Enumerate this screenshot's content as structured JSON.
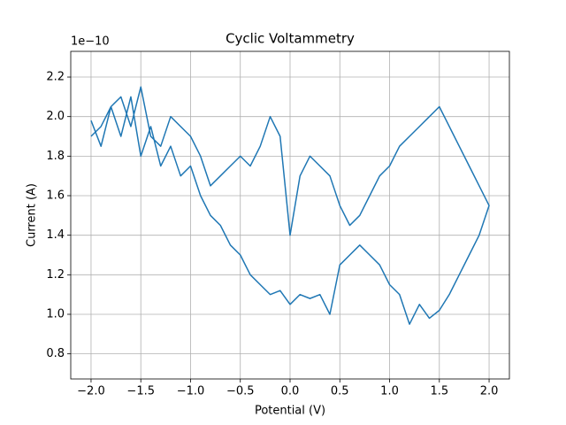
{
  "chart_data": {
    "type": "line",
    "title": "Cyclic Voltammetry",
    "x_label": "Potential (V)",
    "y_label": "Current (A)",
    "y_offset_text": "1e−10",
    "series": [
      {
        "color": "#1f77b4",
        "x": [
          -2.0,
          -1.9,
          -1.8,
          -1.7,
          -1.6,
          -1.5,
          -1.4,
          -1.3,
          -1.2,
          -1.1,
          -1.0,
          -0.9,
          -0.8,
          -0.7,
          -0.6,
          -0.5,
          -0.4,
          -0.3,
          -0.2,
          -0.1,
          0.0,
          0.1,
          0.2,
          0.3,
          0.4,
          0.5,
          0.6,
          0.7,
          0.8,
          0.9,
          1.0,
          1.1,
          1.2,
          1.3,
          1.4,
          1.5,
          1.6,
          1.7,
          1.8,
          1.9,
          2.0,
          1.9,
          1.8,
          1.7,
          1.6,
          1.5,
          1.4,
          1.3,
          1.2,
          1.1,
          1.0,
          0.9,
          0.8,
          0.7,
          0.6,
          0.5,
          0.4,
          0.3,
          0.2,
          0.1,
          0.0,
          -0.1,
          -0.2,
          -0.3,
          -0.4,
          -0.5,
          -0.6,
          -0.7,
          -0.8,
          -0.9,
          -1.0,
          -1.1,
          -1.2,
          -1.3,
          -1.4,
          -1.5,
          -1.6,
          -1.7,
          -1.8,
          -1.9,
          -2.0
        ],
        "values": [
          1.98,
          1.85,
          2.05,
          1.9,
          2.1,
          1.8,
          1.95,
          1.75,
          1.85,
          1.7,
          1.75,
          1.6,
          1.5,
          1.45,
          1.35,
          1.3,
          1.2,
          1.15,
          1.1,
          1.12,
          1.05,
          1.1,
          1.08,
          1.1,
          1.0,
          1.25,
          1.3,
          1.35,
          1.3,
          1.25,
          1.15,
          1.1,
          0.95,
          1.05,
          0.98,
          1.02,
          1.1,
          1.2,
          1.3,
          1.4,
          1.55,
          1.65,
          1.75,
          1.85,
          1.95,
          2.05,
          2.0,
          1.95,
          1.9,
          1.85,
          1.75,
          1.7,
          1.6,
          1.5,
          1.45,
          1.55,
          1.7,
          1.75,
          1.8,
          1.7,
          1.4,
          1.9,
          2.0,
          1.85,
          1.75,
          1.8,
          1.75,
          1.7,
          1.65,
          1.8,
          1.9,
          1.95,
          2.0,
          1.85,
          1.9,
          2.15,
          1.95,
          2.1,
          2.05,
          1.95,
          1.9
        ]
      }
    ],
    "xlim": [
      -2.204,
      2.204
    ],
    "ylim": [
      0.673,
      2.33
    ],
    "xticks": [
      {
        "value": -2,
        "label": "−2.0"
      },
      {
        "value": -1.5,
        "label": "−1.5"
      },
      {
        "value": -1,
        "label": "−1.0"
      },
      {
        "value": -0.5,
        "label": "−0.5"
      },
      {
        "value": 0,
        "label": "0.0"
      },
      0.5,
      {
        "value": 1,
        "label": "1.0"
      },
      1.5,
      {
        "value": 2,
        "label": "2.0"
      }
    ],
    "yticks": [
      0.8,
      {
        "value": 1,
        "label": "1.0"
      },
      1.2,
      1.4,
      1.6,
      1.8,
      {
        "value": 2,
        "label": "2.0"
      },
      2.2
    ],
    "grid": true
  }
}
